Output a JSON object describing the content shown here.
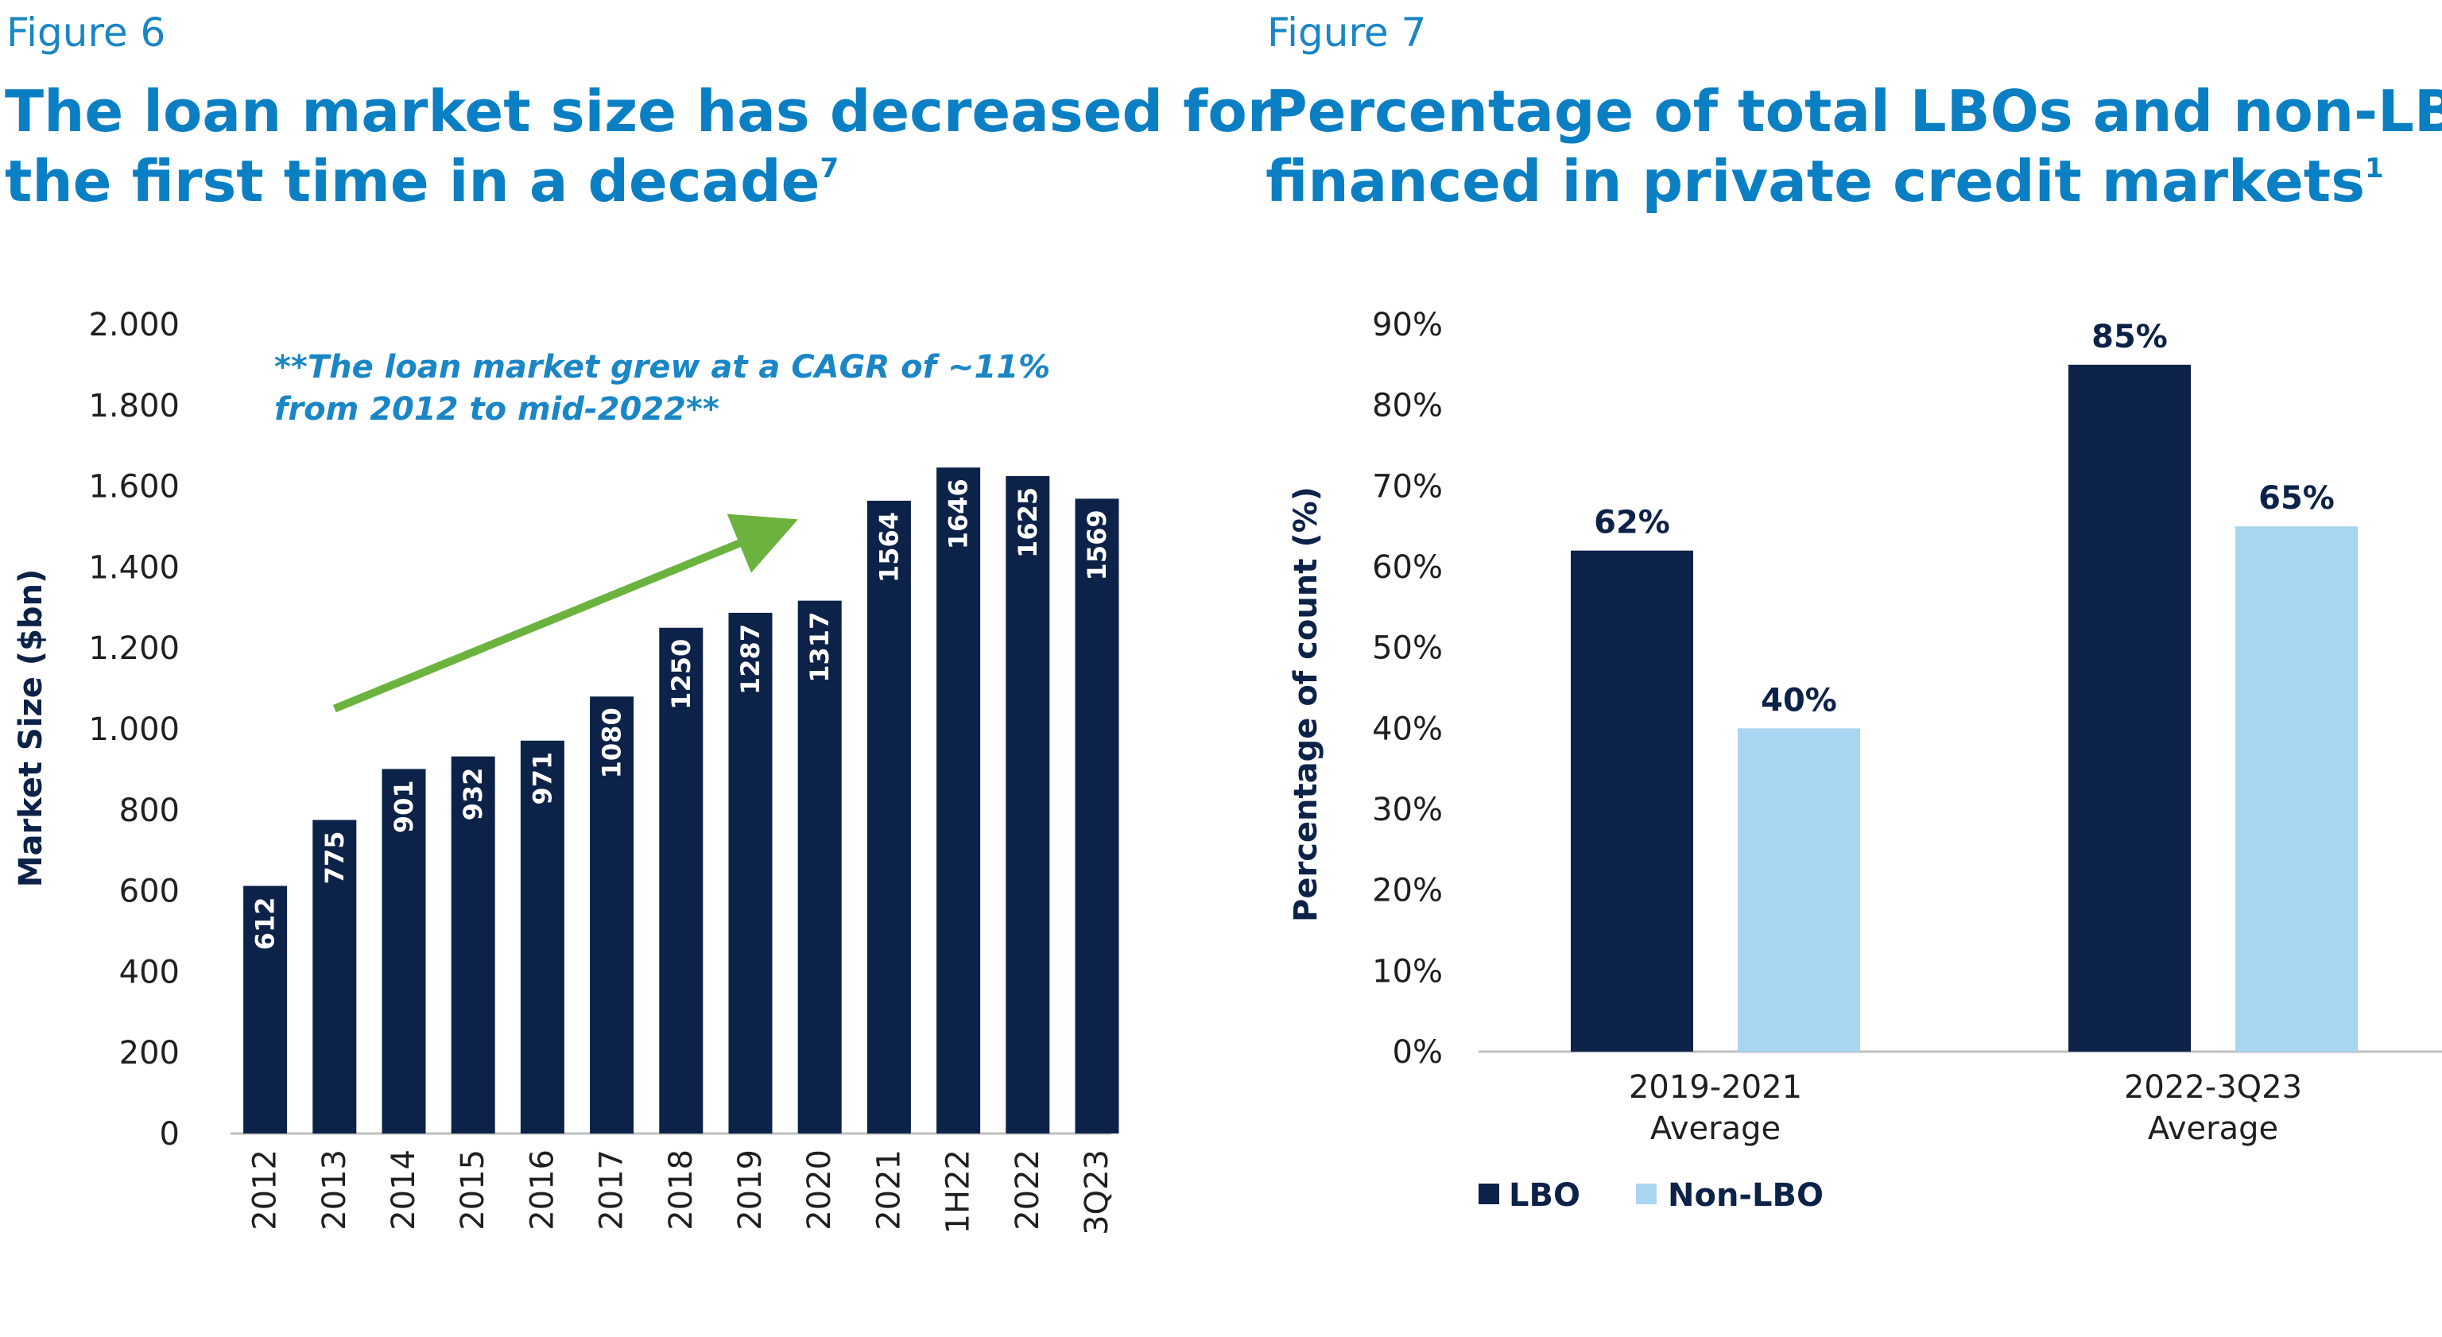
{
  "colors": {
    "navy": "#0d2248",
    "light_blue": "#a8d5f2",
    "green_arrow": "#6bb33e",
    "title_blue": "#0b7fc3"
  },
  "figure6": {
    "label": "Figure 6",
    "title_line1": "The loan market size has decreased for",
    "title_line2": "the first time in a decade",
    "title_sup": "7"
  },
  "figure7": {
    "label": "Figure 7",
    "title_line1": "Percentage of total LBOs and non-LBOs",
    "title_line2": "financed in private credit markets",
    "title_sup": "1"
  },
  "chart_data": [
    {
      "type": "bar",
      "title": "The loan market size has decreased for the first time in a decade",
      "xlabel": "",
      "ylabel": "Market Size ($bn)",
      "ylim": [
        0,
        2000
      ],
      "yticks": [
        0,
        200,
        400,
        600,
        800,
        1000,
        1200,
        1400,
        1600,
        1800,
        2000
      ],
      "ytick_labels": [
        "0",
        "200",
        "400",
        "600",
        "800",
        "1.000",
        "1.200",
        "1.400",
        "1.600",
        "1.800",
        "2.000"
      ],
      "categories": [
        "2012",
        "2013",
        "2014",
        "2015",
        "2016",
        "2017",
        "2018",
        "2019",
        "2020",
        "2021",
        "1H22",
        "2022",
        "3Q23"
      ],
      "values": [
        612,
        775,
        901,
        932,
        971,
        1080,
        1250,
        1287,
        1317,
        1564,
        1646,
        1625,
        1569
      ],
      "annotation_line1": "**The loan market grew at a CAGR of ~11%",
      "annotation_line2": "from 2012 to mid-2022**",
      "trend_arrow": {
        "from_category": "2013",
        "from_value": 1050,
        "to_category": "2020",
        "to_value": 1540
      }
    },
    {
      "type": "bar",
      "title": "Percentage of total LBOs and non-LBOs financed in private credit markets",
      "xlabel": "",
      "ylabel": "Percentage of count (%)",
      "ylim": [
        0,
        90
      ],
      "yticks": [
        0,
        10,
        20,
        30,
        40,
        50,
        60,
        70,
        80,
        90
      ],
      "ytick_labels": [
        "0%",
        "10%",
        "20%",
        "30%",
        "40%",
        "50%",
        "60%",
        "70%",
        "80%",
        "90%"
      ],
      "categories": [
        [
          "2019-2021",
          "Average"
        ],
        [
          "2022-3Q23",
          "Average"
        ]
      ],
      "series": [
        {
          "name": "LBO",
          "values": [
            62,
            85
          ],
          "labels": [
            "62%",
            "85%"
          ]
        },
        {
          "name": "Non-LBO",
          "values": [
            40,
            65
          ],
          "labels": [
            "40%",
            "65%"
          ]
        }
      ],
      "legend_position": "bottom-left"
    }
  ]
}
